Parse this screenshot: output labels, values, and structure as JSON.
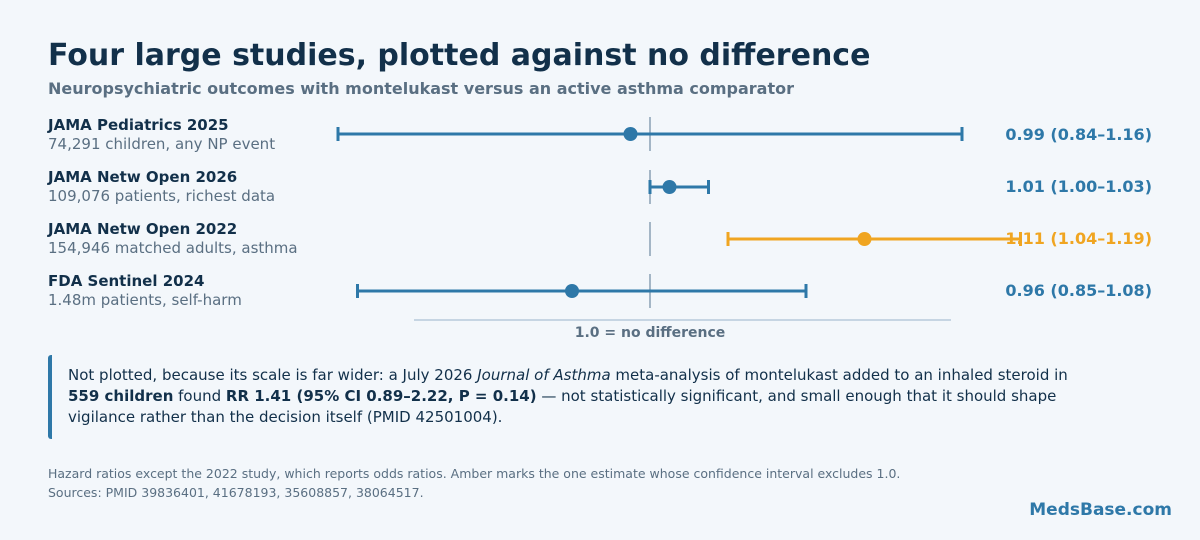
{
  "chart_data": {
    "type": "forest",
    "title": "Four large studies, plotted against no difference",
    "subtitle": "Neuropsychiatric outcomes with montelukast versus an active asthma comparator",
    "reference_value": 1.0,
    "reference_label": "1.0 = no difference",
    "studies": [
      {
        "name": "JAMA Pediatrics 2025",
        "desc": "74,291 children, any NP event",
        "estimate": 0.99,
        "lower": 0.84,
        "upper": 1.16,
        "label": "0.99 (0.84–1.16)",
        "highlight": false
      },
      {
        "name": "JAMA Netw Open 2026",
        "desc": "109,076 patients, richest data",
        "estimate": 1.01,
        "lower": 1.0,
        "upper": 1.03,
        "label": "1.01 (1.00–1.03)",
        "highlight": false
      },
      {
        "name": "JAMA Netw Open 2022",
        "desc": "154,946 matched adults, asthma",
        "estimate": 1.11,
        "lower": 1.04,
        "upper": 1.19,
        "label": "1.11 (1.04–1.19)",
        "highlight": true
      },
      {
        "name": "FDA Sentinel 2024",
        "desc": "1.48m patients, self-harm",
        "estimate": 0.96,
        "lower": 0.85,
        "upper": 1.08,
        "label": "0.96 (0.85–1.08)",
        "highlight": false
      }
    ],
    "xlim": [
      0.8,
      1.25
    ],
    "colors": {
      "default": "#2e78a8",
      "highlight": "#f0a521",
      "reference": "#8aa0b4"
    }
  },
  "callout": {
    "part1": "Not plotted, because its scale is far wider: a July 2026 ",
    "journal": "Journal of Asthma",
    "part2": " meta-analysis of montelukast added to an inhaled steroid in ",
    "children": "559 children",
    "part3": " found ",
    "result": "RR 1.41 (95% CI 0.89–2.22, P = 0.14)",
    "part4": " — not statistically significant, and small enough that it should shape vigilance rather than the decision itself (PMID 42501004)."
  },
  "footnote": {
    "line1": "Hazard ratios except the 2022 study, which reports odds ratios. Amber marks the one estimate whose confidence interval excludes 1.0.",
    "line2": "Sources: PMID 39836401, 41678193, 35608857, 38064517."
  },
  "brand": "MedsBase.com"
}
